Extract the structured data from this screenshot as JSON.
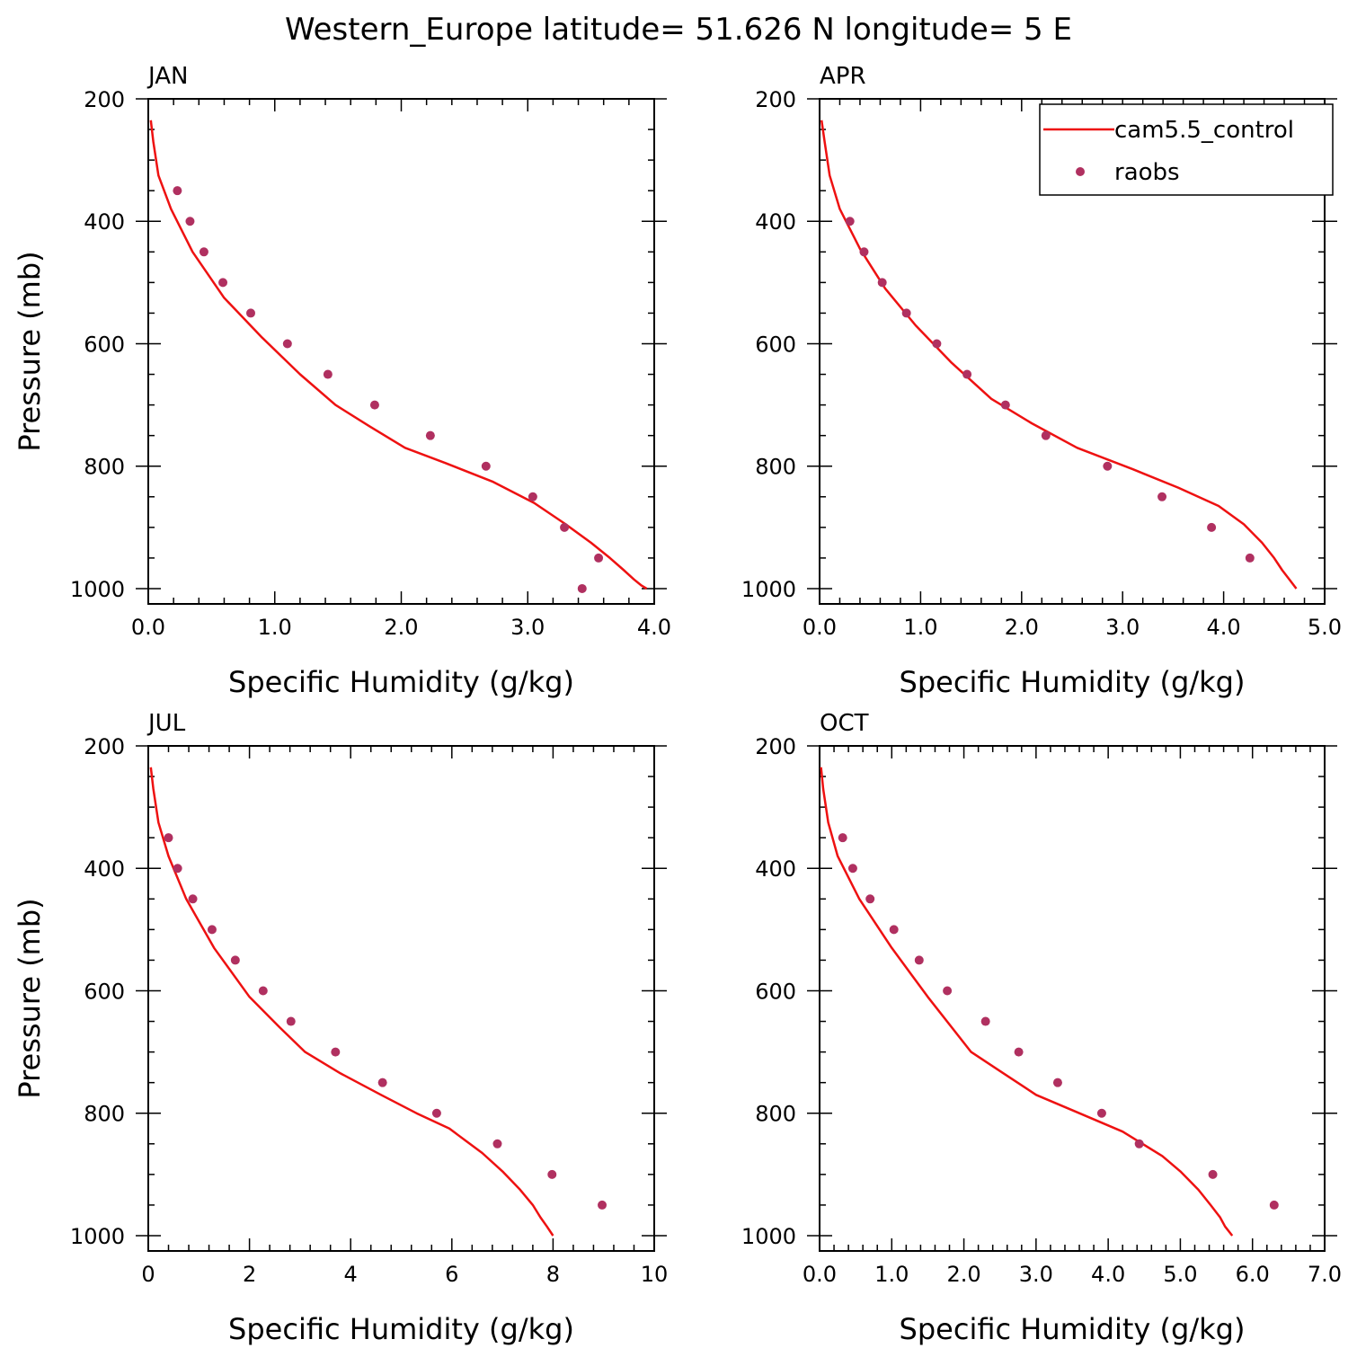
{
  "title": "Western_Europe  latitude= 51.626 N longitude= 5 E",
  "colors": {
    "model": "#ee1111",
    "obs": "#b03060",
    "axis": "#000000"
  },
  "legend": {
    "placement": "top-right of APR panel",
    "model_label": "cam5.5_control",
    "obs_label": "raobs"
  },
  "chart_data": [
    {
      "type": "line",
      "label": "JAN",
      "xlabel": "Specific Humidity (g/kg)",
      "ylabel": "Pressure (mb)",
      "xlim": [
        0,
        4
      ],
      "ylim": [
        200,
        1025
      ],
      "y_inverted": true,
      "xticks": [
        0,
        1,
        2,
        3,
        4
      ],
      "xtick_labels": [
        "0.0",
        "1.0",
        "2.0",
        "3.0",
        "4.0"
      ],
      "yticks": [
        200,
        400,
        600,
        800,
        1000
      ],
      "ytick_labels": [
        "200",
        "400",
        "600",
        "800",
        "1000"
      ],
      "series": [
        {
          "name": "cam5.5_control",
          "kind": "line",
          "x": [
            0.02,
            0.04,
            0.08,
            0.18,
            0.35,
            0.6,
            0.9,
            1.2,
            1.48,
            1.75,
            2.03,
            2.35,
            2.72,
            3.05,
            3.3,
            3.5,
            3.65,
            3.76,
            3.84,
            3.9,
            3.94
          ],
          "y": [
            235,
            270,
            325,
            380,
            450,
            525,
            590,
            650,
            700,
            735,
            770,
            795,
            825,
            860,
            895,
            925,
            950,
            970,
            985,
            995,
            1000
          ]
        },
        {
          "name": "raobs",
          "kind": "scatter",
          "x": [
            0.23,
            0.33,
            0.44,
            0.59,
            0.81,
            1.1,
            1.42,
            1.79,
            2.23,
            2.67,
            3.04,
            3.29,
            3.56,
            3.43
          ],
          "y": [
            350,
            400,
            450,
            500,
            550,
            600,
            650,
            700,
            750,
            800,
            850,
            900,
            950,
            1000
          ]
        }
      ]
    },
    {
      "type": "line",
      "label": "APR",
      "xlabel": "Specific Humidity (g/kg)",
      "ylabel": "",
      "xlim": [
        0,
        5
      ],
      "ylim": [
        200,
        1025
      ],
      "y_inverted": true,
      "xticks": [
        0,
        1,
        2,
        3,
        4,
        5
      ],
      "xtick_labels": [
        "0.0",
        "1.0",
        "2.0",
        "3.0",
        "4.0",
        "5.0"
      ],
      "yticks": [
        200,
        400,
        600,
        800,
        1000
      ],
      "ytick_labels": [
        "200",
        "400",
        "600",
        "800",
        "1000"
      ],
      "series": [
        {
          "name": "cam5.5_control",
          "kind": "line",
          "x": [
            0.02,
            0.05,
            0.1,
            0.2,
            0.4,
            0.65,
            0.95,
            1.3,
            1.7,
            2.1,
            2.55,
            3.1,
            3.55,
            3.95,
            4.2,
            4.38,
            4.5,
            4.58,
            4.65,
            4.72
          ],
          "y": [
            235,
            270,
            325,
            380,
            445,
            510,
            570,
            630,
            690,
            730,
            770,
            805,
            835,
            865,
            895,
            925,
            950,
            970,
            985,
            1000
          ]
        },
        {
          "name": "raobs",
          "kind": "scatter",
          "x": [
            0.3,
            0.44,
            0.62,
            0.86,
            1.16,
            1.46,
            1.84,
            2.24,
            2.85,
            3.39,
            3.88,
            4.26
          ],
          "y": [
            400,
            450,
            500,
            550,
            600,
            650,
            700,
            750,
            800,
            850,
            900,
            950
          ]
        }
      ]
    },
    {
      "type": "line",
      "label": "JUL",
      "xlabel": "Specific Humidity (g/kg)",
      "ylabel": "Pressure (mb)",
      "xlim": [
        0,
        10
      ],
      "ylim": [
        200,
        1025
      ],
      "y_inverted": true,
      "xticks": [
        0,
        2,
        4,
        6,
        8,
        10
      ],
      "xtick_labels": [
        "0",
        "2",
        "4",
        "6",
        "8",
        "10"
      ],
      "yticks": [
        200,
        400,
        600,
        800,
        1000
      ],
      "ytick_labels": [
        "200",
        "400",
        "600",
        "800",
        "1000"
      ],
      "series": [
        {
          "name": "cam5.5_control",
          "kind": "line",
          "x": [
            0.05,
            0.1,
            0.2,
            0.4,
            0.75,
            1.3,
            2.0,
            2.6,
            3.1,
            3.8,
            4.6,
            5.3,
            5.95,
            6.6,
            7.0,
            7.35,
            7.6,
            7.75,
            7.88,
            8.0
          ],
          "y": [
            235,
            270,
            325,
            380,
            450,
            530,
            610,
            660,
            700,
            735,
            770,
            800,
            825,
            865,
            895,
            925,
            950,
            970,
            985,
            1000
          ]
        },
        {
          "name": "raobs",
          "kind": "scatter",
          "x": [
            0.4,
            0.58,
            0.88,
            1.26,
            1.72,
            2.27,
            2.82,
            3.7,
            4.63,
            5.7,
            6.9,
            7.98,
            8.97
          ],
          "y": [
            350,
            400,
            450,
            500,
            550,
            600,
            650,
            700,
            750,
            800,
            850,
            900,
            950
          ]
        }
      ]
    },
    {
      "type": "line",
      "label": "OCT",
      "xlabel": "Specific Humidity (g/kg)",
      "ylabel": "",
      "xlim": [
        0,
        7
      ],
      "ylim": [
        200,
        1025
      ],
      "y_inverted": true,
      "xticks": [
        0,
        1,
        2,
        3,
        4,
        5,
        6,
        7
      ],
      "xtick_labels": [
        "0.0",
        "1.0",
        "2.0",
        "3.0",
        "4.0",
        "5.0",
        "6.0",
        "7.0"
      ],
      "yticks": [
        200,
        400,
        600,
        800,
        1000
      ],
      "ytick_labels": [
        "200",
        "400",
        "600",
        "800",
        "1000"
      ],
      "series": [
        {
          "name": "cam5.5_control",
          "kind": "line",
          "x": [
            0.02,
            0.05,
            0.12,
            0.25,
            0.55,
            1.0,
            1.5,
            2.1,
            2.55,
            3.0,
            3.6,
            4.2,
            4.75,
            5.0,
            5.25,
            5.42,
            5.55,
            5.62,
            5.72
          ],
          "y": [
            235,
            270,
            325,
            380,
            450,
            530,
            610,
            700,
            735,
            770,
            800,
            830,
            870,
            895,
            925,
            950,
            970,
            985,
            1000
          ]
        },
        {
          "name": "raobs",
          "kind": "scatter",
          "x": [
            0.32,
            0.46,
            0.7,
            1.03,
            1.38,
            1.77,
            2.3,
            2.76,
            3.3,
            3.91,
            4.43,
            5.45,
            6.3
          ],
          "y": [
            350,
            400,
            450,
            500,
            550,
            600,
            650,
            700,
            750,
            800,
            850,
            900,
            950
          ]
        }
      ]
    }
  ]
}
